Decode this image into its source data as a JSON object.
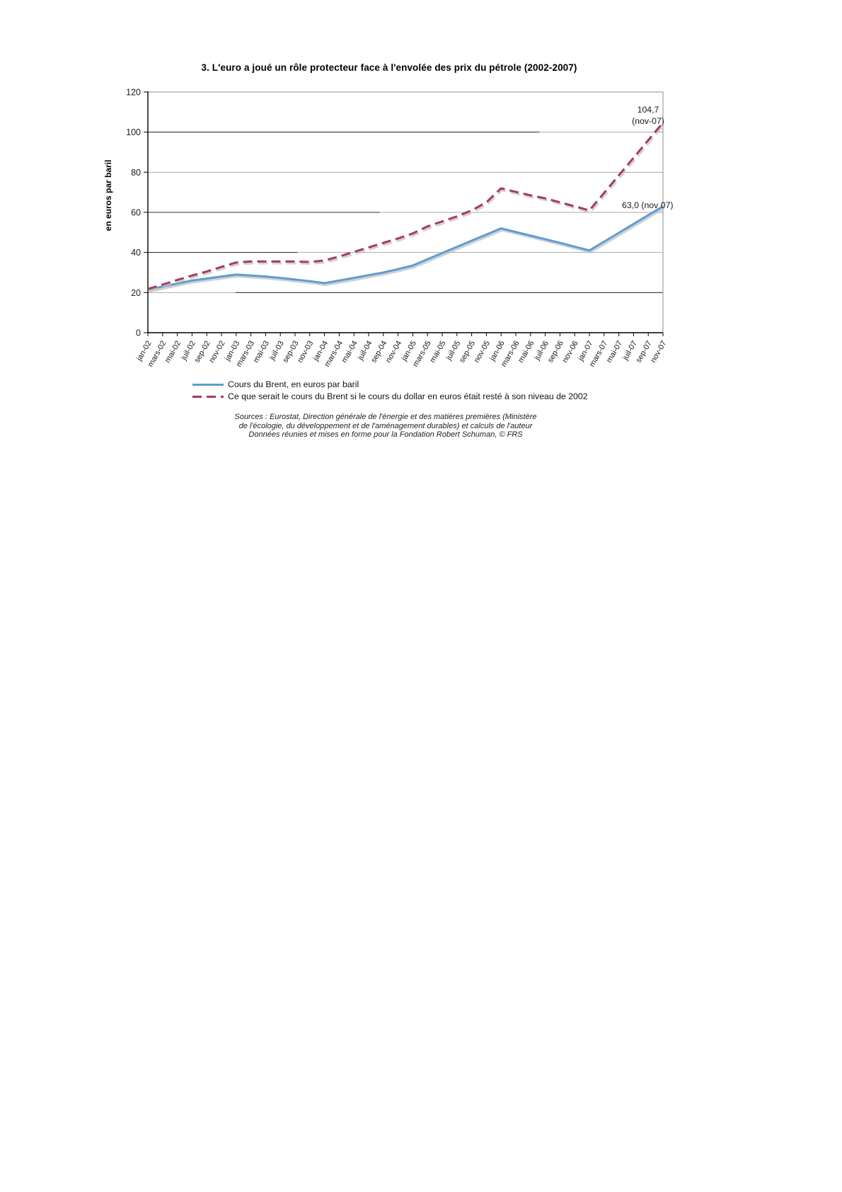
{
  "page": {
    "title": "3. L'euro a joué un rôle protecteur face à l'envolée des prix du pétrole (2002-2007)"
  },
  "chart_data": {
    "type": "line",
    "title": "3. L'euro a joué un rôle protecteur face à l'envolée des prix du pétrole (2002-2007)",
    "xlabel": "",
    "ylabel": "en euros par baril",
    "ylim": [
      0,
      120
    ],
    "ytick_step": 20,
    "grid": true,
    "legend_position": "bottom-left",
    "categories": [
      "jan-02",
      "mars-02",
      "mai-02",
      "juil-02",
      "sep-02",
      "nov-02",
      "jan-03",
      "mars-03",
      "mai-03",
      "juil-03",
      "sep-03",
      "nov-03",
      "jan-04",
      "mars-04",
      "mai-04",
      "juil-04",
      "sep-04",
      "nov-04",
      "jan-05",
      "mars-05",
      "mai-05",
      "juil-05",
      "sep-05",
      "nov-05",
      "jan-06",
      "mars-06",
      "mai-06",
      "juil-06",
      "sep-06",
      "nov-06",
      "jan-07",
      "mars-07",
      "mai-07",
      "juil-07",
      "sep-07",
      "nov-07"
    ],
    "series": [
      {
        "name": "Cours du Brent, en euros par baril",
        "color": "#5d9bd3",
        "style": "solid",
        "values": [
          21.5,
          23,
          24.5,
          26,
          27,
          28,
          29,
          28.5,
          28,
          27.3,
          26.5,
          25.7,
          24.7,
          26,
          27.3,
          28.7,
          30,
          31.7,
          33.5,
          36.6,
          39.7,
          42.8,
          45.9,
          48.9,
          52,
          50.2,
          48.4,
          46.6,
          44.8,
          42.9,
          41,
          45.4,
          49.8,
          54.2,
          58.6,
          63
        ]
      },
      {
        "name": "Ce que serait le cours du Brent si le cours du dollar en euros était resté à son niveau de 2002",
        "color": "#a8395f",
        "style": "dashed",
        "values": [
          21.8,
          24,
          26.3,
          28.5,
          30.5,
          32.8,
          35,
          35.5,
          35.5,
          35.5,
          35.5,
          35.3,
          36,
          38,
          40.3,
          42.5,
          44.8,
          47,
          49.5,
          53,
          55.5,
          58,
          61,
          65,
          72,
          70.2,
          68.5,
          67,
          65,
          63,
          61,
          69.7,
          78.5,
          87.2,
          96,
          104.7
        ]
      }
    ],
    "annotations": [
      {
        "line1": "104,7",
        "line2": "(nov-07)",
        "at": "nov-07",
        "series": 1,
        "value": 104.7
      },
      {
        "line1": "63,0 (nov 07)",
        "line2": "",
        "at": "nov-07",
        "series": 0,
        "value": 63.0
      }
    ],
    "grid_accent_segments": [
      {
        "y": 100,
        "from": 0,
        "to": 0.76
      },
      {
        "y": 60,
        "from": 0,
        "to": 0.45
      },
      {
        "y": 40,
        "from": 0,
        "to": 0.29
      },
      {
        "y": 20,
        "from": 0.17,
        "to": 1.0
      }
    ]
  },
  "sources": {
    "line1": "Sources : Eurostat, Direction générale de l'énergie et des matières premières (Ministère",
    "line2": "de l'écologie, du développement et de l'aménagement durables) et calculs de l'auteur",
    "line3": "Données réunies et mises en forme pour la Fondation Robert Schuman, © FRS"
  }
}
